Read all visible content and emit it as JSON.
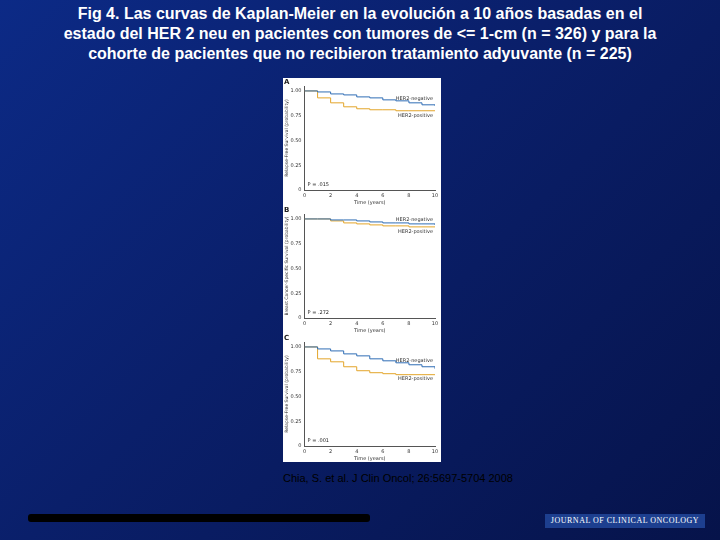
{
  "header": {
    "title": [
      "Fig 4. Las curvas de  Kaplan-Meier en la evolución a 10 años basadas en el",
      "estado del HER 2 neu  en pacientes con tumores de  <= 1-cm  (n = 326) y para la",
      "cohorte  de pacientes que no recibieron tratamiento adyuvante (n = 225)"
    ]
  },
  "chart_data": [
    {
      "type": "line",
      "title": "A",
      "x_label": "Time (years)",
      "y_label": "Relapse-Free Survival (probability)",
      "annotations": [
        "P = .015"
      ],
      "xlim": [
        0,
        10
      ],
      "xticks": [
        0,
        2,
        4,
        6,
        8,
        10
      ],
      "ylim": [
        0,
        1.05
      ],
      "yticks": [
        0,
        0.25,
        {
          "value": 0.5,
          "label": "0.50"
        },
        0.75,
        {
          "value": 1,
          "label": "1.00"
        }
      ],
      "x": [
        0,
        1,
        2,
        3,
        4,
        5,
        6,
        7,
        8,
        9,
        10
      ],
      "series": [
        {
          "name": "HER2-negative",
          "color": "#2f6db5",
          "values": [
            1,
            0.99,
            0.97,
            0.96,
            0.94,
            0.93,
            0.91,
            0.9,
            0.88,
            0.86,
            0.85
          ]
        },
        {
          "name": "HER2-positive",
          "color": "#e3a52a",
          "values": [
            1,
            0.93,
            0.88,
            0.84,
            0.82,
            0.81,
            0.81,
            0.8,
            0.8,
            0.8,
            0.8
          ]
        }
      ]
    },
    {
      "type": "line",
      "title": "B",
      "x_label": "Time (years)",
      "y_label": "Breast Cancer-Specific Survival (probability)",
      "annotations": [
        "P = .272"
      ],
      "xlim": [
        0,
        10
      ],
      "xticks": [
        0,
        2,
        4,
        6,
        8,
        10
      ],
      "ylim": [
        0,
        1.05
      ],
      "yticks": [
        0,
        0.25,
        {
          "value": 0.5,
          "label": "0.50"
        },
        0.75,
        {
          "value": 1,
          "label": "1.00"
        }
      ],
      "x": [
        0,
        1,
        2,
        3,
        4,
        5,
        6,
        7,
        8,
        9,
        10
      ],
      "series": [
        {
          "name": "HER2-negative",
          "color": "#2f6db5",
          "values": [
            1,
            1,
            0.99,
            0.99,
            0.98,
            0.97,
            0.96,
            0.96,
            0.95,
            0.95,
            0.94
          ]
        },
        {
          "name": "HER2-positive",
          "color": "#e3a52a",
          "values": [
            1,
            1,
            0.98,
            0.96,
            0.95,
            0.94,
            0.93,
            0.93,
            0.92,
            0.92,
            0.92
          ]
        }
      ]
    },
    {
      "type": "line",
      "title": "C",
      "x_label": "Time (years)",
      "y_label": "Relapse-Free Survival (probability)",
      "annotations": [
        "P = .001"
      ],
      "xlim": [
        0,
        10
      ],
      "xticks": [
        0,
        2,
        4,
        6,
        8,
        10
      ],
      "ylim": [
        0,
        1.05
      ],
      "yticks": [
        0,
        0.25,
        {
          "value": 0.5,
          "label": "0.50"
        },
        0.75,
        {
          "value": 1,
          "label": "1.00"
        }
      ],
      "x": [
        0,
        1,
        2,
        3,
        4,
        5,
        6,
        7,
        8,
        9,
        10
      ],
      "series": [
        {
          "name": "HER2-negative",
          "color": "#2f6db5",
          "values": [
            1,
            0.98,
            0.96,
            0.93,
            0.91,
            0.88,
            0.86,
            0.84,
            0.82,
            0.8,
            0.78
          ]
        },
        {
          "name": "HER2-positive",
          "color": "#e3a52a",
          "values": [
            1,
            0.88,
            0.85,
            0.8,
            0.76,
            0.74,
            0.73,
            0.72,
            0.72,
            0.72,
            0.72
          ]
        }
      ]
    }
  ],
  "footer": {
    "citation": "Chia, S. et al. J Clin Oncol; 26:5697-5704 2008",
    "journal": "JOURNAL OF CLINICAL ONCOLOGY"
  }
}
